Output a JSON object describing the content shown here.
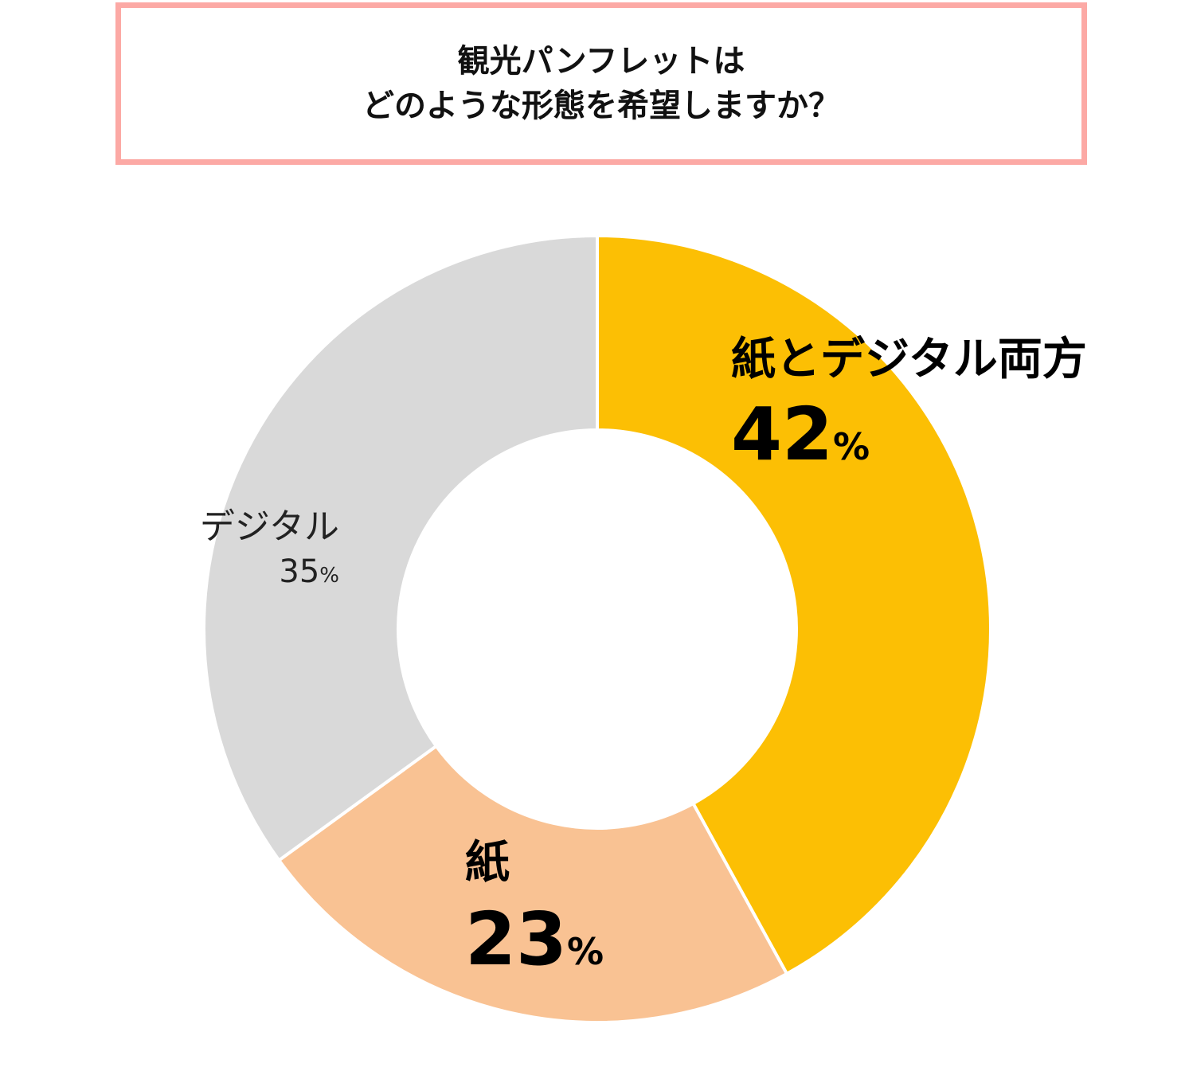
{
  "title": {
    "line1": "観光パンフレットは",
    "line2": "どのような形態を希望しますか？"
  },
  "chart_data": {
    "type": "pie",
    "donut": true,
    "start_angle_deg": 0,
    "direction": "clockwise",
    "slices": [
      {
        "label": "紙とデジタル両方",
        "value": 42,
        "value_text": "42",
        "unit": "%",
        "color": "#fcbf04"
      },
      {
        "label": "紙",
        "value": 23,
        "value_text": "23",
        "unit": "%",
        "color": "#f9c293"
      },
      {
        "label": "デジタル",
        "value": 35,
        "value_text": "35",
        "unit": "%",
        "color": "#d9d9d9"
      }
    ],
    "border_color": "#ffffff",
    "title_border_color": "#fca9a5"
  }
}
